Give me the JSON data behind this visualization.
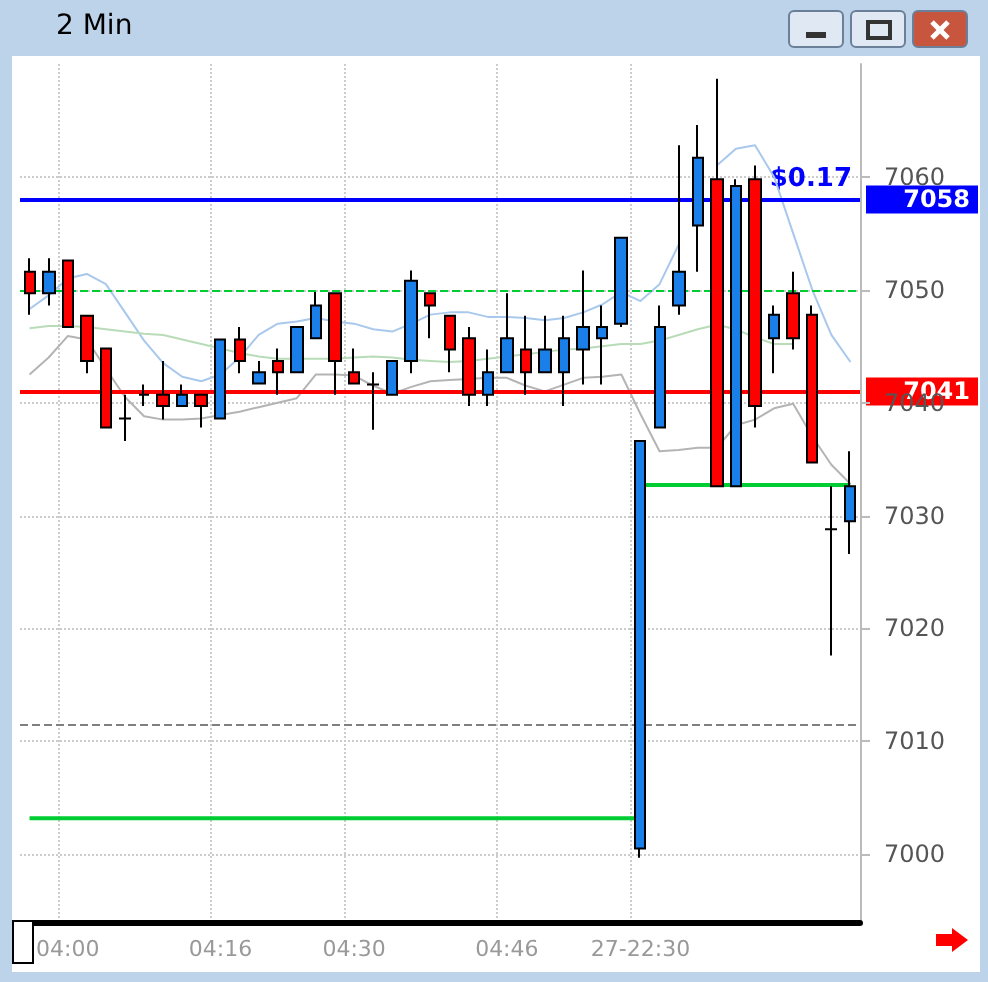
{
  "chart_data": {
    "type": "candlestick",
    "title": "2 Min",
    "categories": [
      null,
      null,
      "04:00",
      null,
      null,
      null,
      null,
      null,
      null,
      null,
      "04:16",
      null,
      null,
      null,
      null,
      null,
      null,
      "04:30",
      null,
      null,
      null,
      null,
      null,
      null,
      null,
      "04:46",
      null,
      null,
      null,
      null,
      null,
      null,
      "27-22:30",
      null,
      null,
      null,
      null,
      null,
      null,
      null,
      null,
      null,
      null,
      null
    ],
    "ohlc": [
      [
        7051.6,
        7052.8,
        7047.8,
        7049.7
      ],
      [
        7049.7,
        7052.8,
        7048.6,
        7051.6
      ],
      [
        7052.6,
        7052.6,
        7046.7,
        7046.7
      ],
      [
        7047.7,
        7047.7,
        7042.6,
        7043.7
      ],
      [
        7044.8,
        7044.8,
        7037.8,
        7037.8
      ],
      [
        7038.6,
        7040.7,
        7036.6,
        7038.6
      ],
      [
        7040.7,
        7041.6,
        7039.7,
        7040.7
      ],
      [
        7040.7,
        7043.7,
        7038.5,
        7039.7
      ],
      [
        7039.7,
        7041.6,
        7039.7,
        7040.7
      ],
      [
        7040.7,
        7040.7,
        7037.8,
        7039.7
      ],
      [
        7038.6,
        7045.6,
        7038.6,
        7045.6
      ],
      [
        7045.6,
        7046.7,
        7042.6,
        7043.7
      ],
      [
        7041.7,
        7043.7,
        7041.7,
        7042.7
      ],
      [
        7043.7,
        7044.8,
        7040.7,
        7042.7
      ],
      [
        7042.7,
        7046.7,
        7042.7,
        7046.7
      ],
      [
        7045.7,
        7049.8,
        7045.7,
        7048.6
      ],
      [
        7049.7,
        7049.7,
        7040.7,
        7043.7
      ],
      [
        7042.7,
        7044.8,
        7041.7,
        7041.7
      ],
      [
        7041.6,
        7042.7,
        7037.6,
        7041.6
      ],
      [
        7040.7,
        7043.7,
        7040.7,
        7043.7
      ],
      [
        7043.7,
        7051.7,
        7042.6,
        7050.8
      ],
      [
        7049.7,
        7049.7,
        7045.7,
        7048.6
      ],
      [
        7047.7,
        7047.7,
        7042.7,
        7044.7
      ],
      [
        7045.7,
        7046.7,
        7039.7,
        7040.7
      ],
      [
        7040.7,
        7044.7,
        7039.7,
        7042.7
      ],
      [
        7042.7,
        7049.7,
        7042.7,
        7045.7
      ],
      [
        7044.7,
        7047.7,
        7040.7,
        7042.7
      ],
      [
        7042.7,
        7047.7,
        7042.7,
        7044.7
      ],
      [
        7042.7,
        7047.7,
        7039.7,
        7045.7
      ],
      [
        7044.7,
        7051.7,
        7041.6,
        7046.7
      ],
      [
        7045.7,
        7048.6,
        7041.6,
        7046.7
      ],
      [
        7047.0,
        7054.6,
        7046.7,
        7054.6
      ],
      [
        7000.5,
        7036.6,
        6999.7,
        7036.6
      ],
      [
        7037.8,
        7048.6,
        7037.8,
        7046.7
      ],
      [
        7048.6,
        7062.8,
        7047.8,
        7051.6
      ],
      [
        7055.7,
        7064.6,
        7051.6,
        7061.7
      ],
      [
        7059.8,
        7068.7,
        7032.6,
        7032.6
      ],
      [
        7032.6,
        7059.8,
        7032.6,
        7059.2
      ],
      [
        7059.8,
        7061.0,
        7037.8,
        7039.7
      ],
      [
        7045.7,
        7048.6,
        7042.6,
        7047.8
      ],
      [
        7049.7,
        7051.6,
        7044.7,
        7045.7
      ],
      [
        7047.8,
        7048.6,
        7034.7,
        7034.7
      ],
      [
        7028.8,
        7032.6,
        7017.6,
        7028.8
      ],
      [
        7029.5,
        7035.7,
        7026.6,
        7032.6
      ]
    ],
    "series": [
      {
        "type": "line",
        "color": "#a8c8ec",
        "values": [
          7048.3,
          7049.5,
          7051,
          7051.4,
          7050.5,
          7048,
          7045.5,
          7043.5,
          7042.3,
          7041.9,
          7042.5,
          7044,
          7046,
          7047,
          7047.2,
          7047.5,
          7047.2,
          7047,
          7046.5,
          7046.3,
          7047,
          7047.8,
          7048,
          7048,
          7047.6,
          7047.6,
          7047.5,
          7047.3,
          7047.5,
          7048,
          7048.7,
          7049.8,
          7049,
          7050.5,
          7054,
          null,
          7061,
          7062.5,
          7062.8,
          7060,
          7055,
          7050,
          7046,
          7043.6
        ]
      },
      {
        "type": "line",
        "color": "#b8dcb8",
        "values": [
          7046.6,
          7046.8,
          7046.8,
          7046.7,
          7046.5,
          7046.3,
          7046.1,
          7046,
          7045.6,
          7045.2,
          7044.8,
          7044.4,
          7044.1,
          7043.9,
          7043.9,
          7043.9,
          7043.9,
          7044,
          7044.1,
          7044,
          7043.8,
          7043.7,
          7043.6,
          7043.7,
          7043.9,
          7044.1,
          7044.3,
          7044.5,
          7044.7,
          7044.8,
          7045,
          7045.2,
          7045.2,
          7045.5,
          7046,
          7046.5,
          7046.9,
          7046.5,
          7045.8,
          7045.2,
          7045.2,
          null,
          null,
          null
        ]
      },
      {
        "type": "line",
        "color": "#b4b4b4",
        "values": [
          7042.5,
          7044,
          7045.9,
          7045.6,
          7043,
          7040.5,
          7038.8,
          7038.5,
          7038.5,
          7038.6,
          7038.9,
          7039.2,
          7039.6,
          7040,
          7040.4,
          7042.5,
          7042.5,
          7042.4,
          7041.5,
          7040.8,
          7041.4,
          7041.9,
          7042,
          7042.1,
          7042.2,
          7042.2,
          7041.5,
          7041,
          7041.6,
          7042.2,
          7042.3,
          7042.5,
          7039,
          7035.7,
          7035.8,
          7036,
          7036,
          7038,
          7038.5,
          7039.5,
          7039.9,
          7037,
          7034.5,
          7032.8
        ]
      },
      {
        "type": "step",
        "color": "#00cc33",
        "values": [
          7003.2,
          7003.2,
          7003.2,
          7003.2,
          7003.2,
          7003.2,
          7003.2,
          7003.2,
          7003.2,
          7003.2,
          7003.2,
          7003.2,
          7003.2,
          7003.2,
          7003.2,
          7003.2,
          7003.2,
          7003.2,
          7003.2,
          7003.2,
          7003.2,
          7003.2,
          7003.2,
          7003.2,
          7003.2,
          7003.2,
          7003.2,
          7003.2,
          7003.2,
          7003.2,
          7003.2,
          7003.2,
          7032.7,
          7032.7,
          7032.7,
          7032.7,
          7032.7,
          7032.7,
          7032.7,
          7032.7,
          7032.7,
          7032.7,
          7032.7,
          7032.7
        ]
      }
    ],
    "colors": [
      "#ff0000",
      "#1a7fe8",
      "#ff0000",
      "#ff0000",
      "#ff0000",
      "#000000",
      "#000000",
      "#ff0000",
      "#1a7fe8",
      "#ff0000",
      "#1a7fe8",
      "#ff0000",
      "#1a7fe8",
      "#ff0000",
      "#1a7fe8",
      "#1a7fe8",
      "#ff0000",
      "#ff0000",
      "#000000",
      "#1a7fe8",
      "#1a7fe8",
      "#ff0000",
      "#ff0000",
      "#ff0000",
      "#1a7fe8",
      "#1a7fe8",
      "#ff0000",
      "#1a7fe8",
      "#1a7fe8",
      "#1a7fe8",
      "#1a7fe8",
      "#1a7fe8",
      "#1a7fe8",
      "#1a7fe8",
      "#1a7fe8",
      "#1a7fe8",
      "#ff0000",
      "#1a7fe8",
      "#ff0000",
      "#1a7fe8",
      "#ff0000",
      "#ff0000",
      "#000000",
      "#1a7fe8"
    ],
    "annotations": [
      {
        "text": "$0.17",
        "y": 7058
      }
    ],
    "ylim": [
      6994,
      7070
    ],
    "yticks": [
      7000,
      7010,
      7020,
      7030,
      7040,
      7050,
      7060
    ],
    "ref_lines": [
      {
        "axis": "y",
        "value": 7058,
        "label": "7058",
        "color": "#0000ff",
        "line_style": "solid"
      },
      {
        "axis": "y",
        "value": 7041,
        "label": "7041",
        "color": "#ff0000",
        "line_style": "solid"
      },
      {
        "axis": "y",
        "value": 7050,
        "color": "#00cc33",
        "line_style": "dashed"
      },
      {
        "axis": "y",
        "value": 7011.5,
        "color": "#808080",
        "line_style": "dashed"
      }
    ],
    "grid": true,
    "marker": "none"
  }
}
